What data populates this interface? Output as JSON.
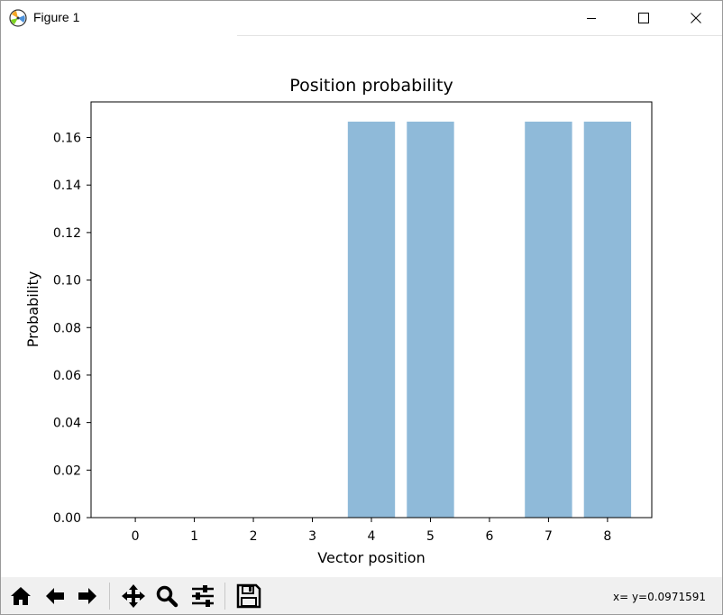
{
  "window": {
    "title": "Figure 1",
    "icon": "matplotlib-icon",
    "controls": [
      "minimize-icon",
      "maximize-icon",
      "close-icon"
    ]
  },
  "toolbar": {
    "buttons": [
      "home-icon",
      "back-arrow-icon",
      "forward-arrow-icon",
      "pan-icon",
      "zoom-icon",
      "configure-subplots-icon",
      "save-icon"
    ],
    "coords": "x= y=0.0971591"
  },
  "chart_data": {
    "type": "bar",
    "title": "Position probability",
    "xlabel": "Vector position",
    "ylabel": "Probability",
    "categories": [
      "0",
      "1",
      "2",
      "3",
      "4",
      "5",
      "6",
      "7",
      "8"
    ],
    "values": [
      0,
      0,
      0,
      0,
      0.1667,
      0.1667,
      0,
      0.1667,
      0.1667
    ],
    "ylim": [
      0,
      0.175
    ],
    "yticks": [
      "0.00",
      "0.02",
      "0.04",
      "0.06",
      "0.08",
      "0.10",
      "0.12",
      "0.14",
      "0.16"
    ],
    "bar_color": "#8fbad9",
    "grid": false,
    "legend": "none"
  }
}
